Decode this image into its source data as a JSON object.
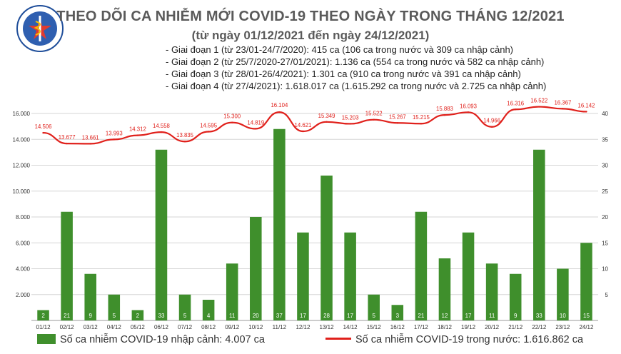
{
  "header": {
    "title": "THEO DÕI CA NHIỄM MỚI COVID-19 THEO NGÀY TRONG THÁNG 12/2021",
    "subtitle": "(từ ngày 01/12/2021 đến ngày 24/12/2021)",
    "logo_text_top": "BỘ Y TẾ",
    "logo_text_bottom": "MINISTRY OF HEALTH"
  },
  "phases": [
    "- Giai đoạn 1 (từ 23/01-24/7/2020): 415 ca (106 ca trong nước và 309 ca nhập cảnh)",
    "- Giai đoạn 2 (từ 25/7/2020-27/01/2021): 1.136 ca (554 ca trong nước và 582 ca nhập cảnh)",
    "- Giai đoạn 3 (từ 28/01-26/4/2021): 1.301 ca (910 ca trong nước và 391 ca nhập cảnh)",
    "- Giai đoạn 4 (từ 27/4/2021): 1.618.017 ca (1.615.292 ca trong nước và 2.725 ca nhập cảnh)"
  ],
  "legend": {
    "bar_label": "Số ca nhiễm COVID-19 nhập cảnh: 4.007 ca",
    "line_label": "Số ca nhiễm COVID-19 trong nước: 1.616.862 ca"
  },
  "colors": {
    "bar": "#3f8f2c",
    "line": "#e0201b",
    "grid": "#d6d6d6",
    "axis_text": "#333333",
    "line_label": "#e0201b"
  },
  "chart_data": {
    "type": "bar+line",
    "categories": [
      "01/12",
      "02/12",
      "03/12",
      "04/12",
      "05/12",
      "06/12",
      "07/12",
      "08/12",
      "09/12",
      "10/12",
      "11/12",
      "12/12",
      "13/12",
      "14/12",
      "15/12",
      "16/12",
      "17/12",
      "18/12",
      "19/12",
      "20/12",
      "21/12",
      "22/12",
      "23/12",
      "24/12"
    ],
    "series": [
      {
        "name": "Số ca nhiễm COVID-19 nhập cảnh: 4.007 ca",
        "type": "bar",
        "axis": "right",
        "values": [
          2,
          21,
          9,
          5,
          2,
          33,
          5,
          4,
          11,
          20,
          37,
          17,
          28,
          17,
          5,
          3,
          21,
          12,
          17,
          11,
          9,
          33,
          10,
          15
        ]
      },
      {
        "name": "Số ca nhiễm COVID-19 trong nước: 1.616.862 ca",
        "type": "line",
        "axis": "left",
        "values": [
          14506,
          13677,
          13661,
          13993,
          14312,
          14558,
          13835,
          14595,
          15300,
          14819,
          16104,
          14621,
          15349,
          15203,
          15522,
          15267,
          15215,
          15883,
          16093,
          14966,
          16316,
          16522,
          16367,
          16142
        ],
        "labels": [
          "14.506",
          "13.677",
          "13.661",
          "13.993",
          "14.312",
          "14.558",
          "13.835",
          "14.595",
          "15.300",
          "14.819",
          "16.104",
          "14.621",
          "15.349",
          "15.203",
          "15.522",
          "15.267",
          "15.215",
          "15.883",
          "16.093",
          "14.966",
          "16.316",
          "16.522",
          "16.367",
          "16.142"
        ]
      }
    ],
    "left_axis": {
      "ylim": [
        0,
        16000
      ],
      "ticks": [
        2000,
        4000,
        6000,
        8000,
        10000,
        12000,
        14000,
        16000
      ],
      "tick_labels": [
        "2.000",
        "4.000",
        "6.000",
        "8.000",
        "10.000",
        "12.000",
        "14.000",
        "16.000"
      ]
    },
    "right_axis": {
      "ylim": [
        0,
        40
      ],
      "ticks": [
        5,
        10,
        15,
        20,
        25,
        30,
        35,
        40
      ],
      "tick_labels": [
        "5",
        "10",
        "15",
        "20",
        "25",
        "30",
        "35",
        "40"
      ]
    },
    "grid": true,
    "legend_position": "bottom"
  }
}
